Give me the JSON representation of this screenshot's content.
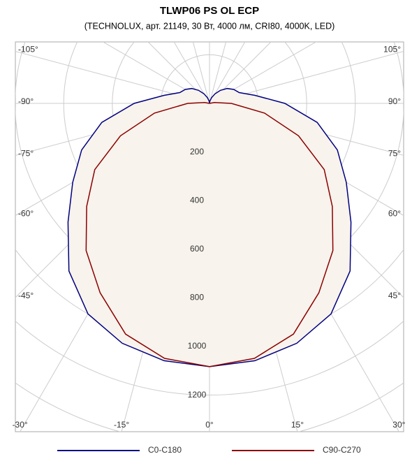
{
  "chart_data": {
    "type": "polar",
    "title": "TLWP06 PS OL ECP",
    "subtitle": "(TECHNOLUX, арт. 21149, 30 Вт, 4000 лм, CRI80, 4000K, LED)",
    "x": [
      -180,
      -170,
      -160,
      -150,
      -140,
      -130,
      -120,
      -110,
      -100,
      -90,
      -80,
      -70,
      -60,
      -50,
      -40,
      -30,
      -20,
      -10,
      0,
      10,
      20,
      30,
      40,
      50,
      60,
      70,
      80,
      90,
      100,
      110,
      120,
      130,
      140,
      150,
      160,
      170,
      180
    ],
    "series": [
      {
        "name": "C0-C180",
        "color": "#000080",
        "values": [
          0,
          10,
          25,
          45,
          70,
          95,
          115,
          130,
          190,
          310,
          450,
          560,
          650,
          760,
          900,
          1000,
          1050,
          1075,
          1083,
          1075,
          1050,
          1000,
          900,
          760,
          650,
          560,
          450,
          310,
          190,
          130,
          115,
          95,
          70,
          45,
          25,
          10,
          0
        ]
      },
      {
        "name": "C90-C270",
        "color": "#8b0000",
        "values": [
          0,
          0,
          0,
          0,
          0,
          0,
          0,
          0,
          20,
          90,
          230,
          390,
          545,
          660,
          790,
          900,
          1010,
          1065,
          1083,
          1065,
          1010,
          900,
          790,
          660,
          545,
          390,
          230,
          90,
          20,
          0,
          0,
          0,
          0,
          0,
          0,
          0,
          0
        ]
      }
    ],
    "rlim": [
      0,
      1600
    ],
    "rticks": [
      200,
      400,
      600,
      800,
      1000,
      1200
    ],
    "angle_ticks": [
      {
        "value": -105,
        "label": "-105°"
      },
      {
        "value": -90,
        "label": "-90°"
      },
      {
        "value": -75,
        "label": "-75°"
      },
      {
        "value": -60,
        "label": "-60°"
      },
      {
        "value": -45,
        "label": "-45°"
      },
      {
        "value": -30,
        "label": "-30°"
      },
      {
        "value": -15,
        "label": "-15°"
      },
      {
        "value": 0,
        "label": "0°"
      },
      {
        "value": 15,
        "label": "15°"
      },
      {
        "value": 30,
        "label": "30°"
      },
      {
        "value": 45,
        "label": "45°"
      },
      {
        "value": 60,
        "label": "60°"
      },
      {
        "value": 75,
        "label": "75°"
      },
      {
        "value": 90,
        "label": "90°"
      },
      {
        "value": 105,
        "label": "105°"
      }
    ],
    "fill": "#f8f3ec",
    "grid": true
  }
}
